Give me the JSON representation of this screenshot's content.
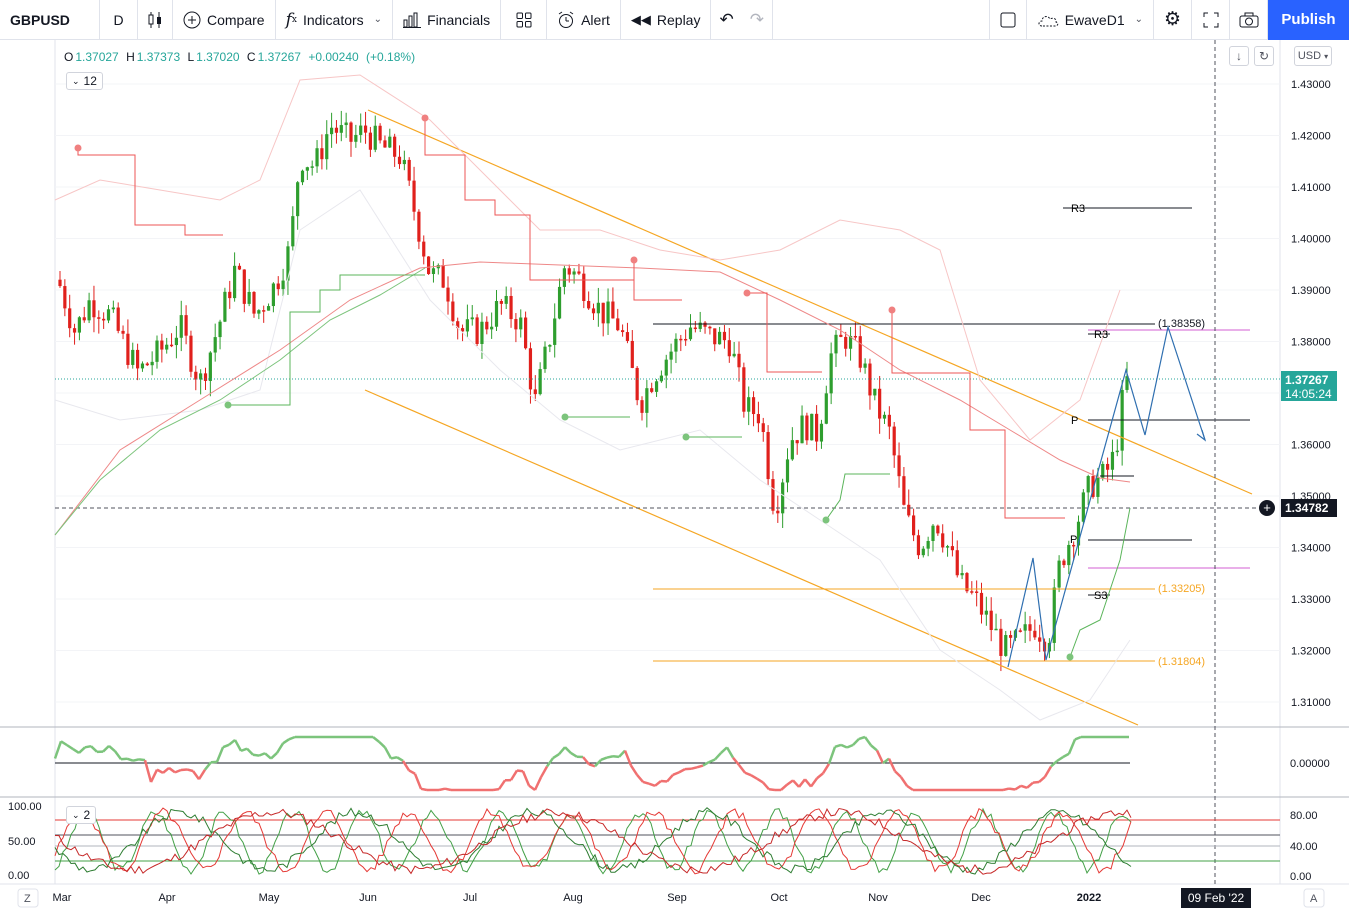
{
  "toolbar": {
    "symbol": "GBPUSD",
    "interval": "D",
    "compare": "Compare",
    "indicators": "Indicators",
    "financials": "Financials",
    "alert": "Alert",
    "replay": "Replay",
    "layout_name": "EwaveD1",
    "publish": "Publish"
  },
  "legend": {
    "open_label": "O",
    "open": "1.37027",
    "high_label": "H",
    "high": "1.37373",
    "low_label": "L",
    "low": "1.37020",
    "close_label": "C",
    "close": "1.37267",
    "change": "+0.00240",
    "change_pct": "(+0.18%)",
    "indicator_count": "12",
    "osc_count": "2"
  },
  "price_scale": {
    "currency": "USD",
    "ticks": [
      "1.43000",
      "1.42000",
      "1.41000",
      "1.40000",
      "1.39000",
      "1.38000",
      "1.37000",
      "1.36000",
      "1.35000",
      "1.34000",
      "1.33000",
      "1.32000",
      "1.31000"
    ],
    "current_price": "1.37267",
    "countdown": "14:05:24",
    "crosshair_price": "1.34782"
  },
  "osc1_scale": {
    "ticks": [
      "0.00000"
    ]
  },
  "osc2_scale": {
    "right_ticks": [
      "80.00",
      "40.00",
      "0.00"
    ],
    "left_ticks": [
      "100.00",
      "50.00",
      "0.00"
    ]
  },
  "time_axis": {
    "labels": [
      "Mar",
      "Apr",
      "May",
      "Jun",
      "Jul",
      "Aug",
      "Sep",
      "Oct",
      "Nov",
      "Dec",
      "2022"
    ],
    "crosshair_date": "09 Feb '22",
    "left_button": "Z",
    "right_button": "A"
  },
  "annotations": {
    "r3_top": "R3",
    "r3_mid": "R3",
    "pivot": "P",
    "pivot_low": "P",
    "s3": "S3",
    "level_high": "(1.38358)",
    "level_mid": "(1.33205)",
    "level_low": "(1.31804)"
  },
  "colors": {
    "up": "#26a69a",
    "down": "#ef5350",
    "candle_up": "#2e9e2e",
    "candle_down": "#e0201c",
    "channel": "#f5a623",
    "wave": "#2f6fb0",
    "accent": "#2962ff"
  }
}
